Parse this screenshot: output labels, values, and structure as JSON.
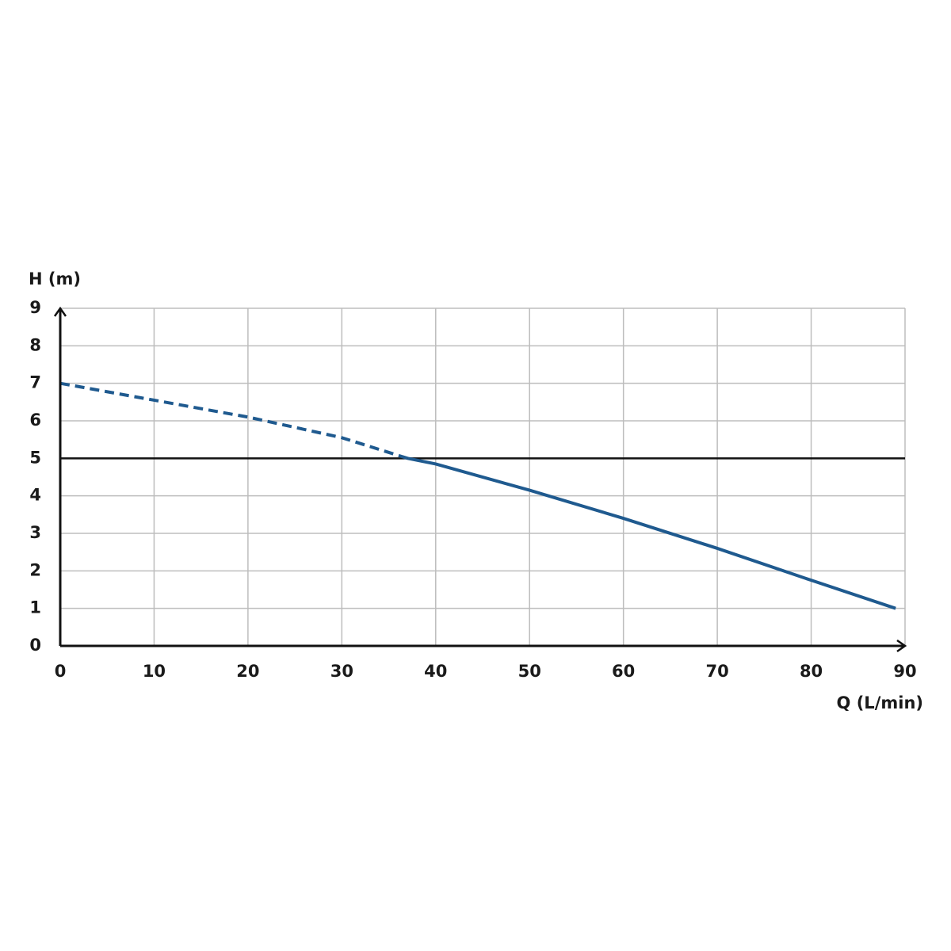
{
  "chart_data": {
    "type": "line",
    "y_label": "H (m)",
    "x_label": "Q (L/min)",
    "xlim": [
      0,
      90
    ],
    "xticks": [
      0,
      10,
      20,
      30,
      40,
      50,
      60,
      70,
      80,
      90
    ],
    "ylim": [
      0,
      9
    ],
    "yticks": [
      0,
      1,
      2,
      3,
      4,
      5,
      6,
      7,
      8,
      9
    ],
    "grid": true,
    "reference_line": 5,
    "series": [
      {
        "color": "#1f5a8f",
        "style": "dashed",
        "x": [
          0,
          10,
          20,
          30,
          37
        ],
        "values": [
          7,
          6.55,
          6.1,
          5.55,
          5.0
        ]
      },
      {
        "color": "#1f5a8f",
        "style": "solid",
        "x": [
          37,
          40,
          50,
          60,
          70,
          80,
          89
        ],
        "values": [
          5.0,
          4.85,
          4.15,
          3.4,
          2.6,
          1.75,
          1.0
        ]
      }
    ]
  }
}
